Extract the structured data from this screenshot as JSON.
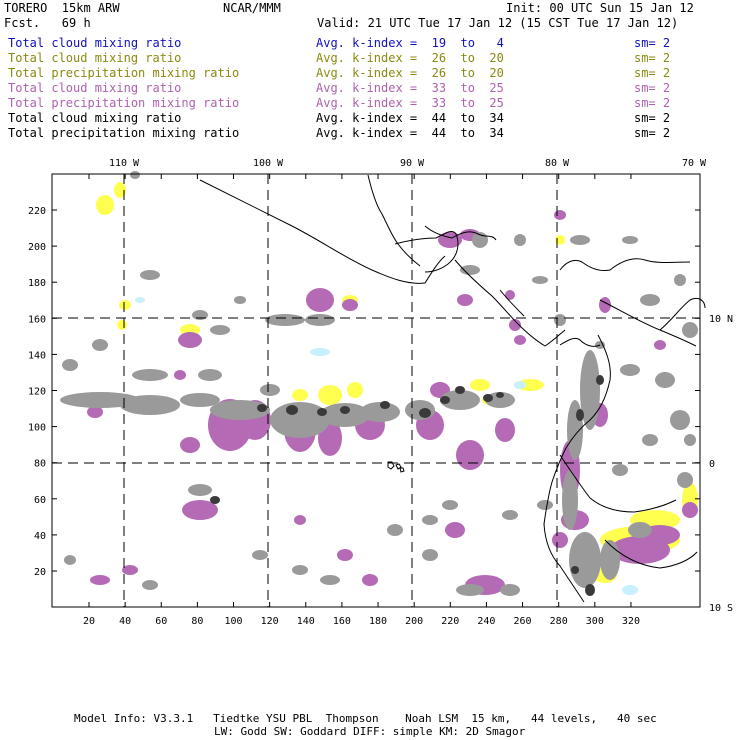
{
  "header": {
    "model": "TORERO  15km ARW",
    "org": "NCAR/MMM",
    "init": "Init: 00 UTC Sun 15 Jan 12",
    "fcst": "Fcst.   69 h",
    "valid": "Valid: 21 UTC Tue 17 Jan 12 (15 CST Tue 17 Jan 12)"
  },
  "legend": [
    {
      "field": "Total cloud mixing ratio",
      "kindex": "Avg. k-index =  19  to   4",
      "sm": "sm= 2",
      "color": "#1010c0"
    },
    {
      "field": "Total cloud mixing ratio",
      "kindex": "Avg. k-index =  26  to  20",
      "sm": "sm= 2",
      "color": "#8a8a10"
    },
    {
      "field": "Total precipitation mixing ratio",
      "kindex": "Avg. k-index =  26  to  20",
      "sm": "sm= 2",
      "color": "#8a8a10"
    },
    {
      "field": "Total cloud mixing ratio",
      "kindex": "Avg. k-index =  33  to  25",
      "sm": "sm= 2",
      "color": "#b060b0"
    },
    {
      "field": "Total precipitation mixing ratio",
      "kindex": "Avg. k-index =  33  to  25",
      "sm": "sm= 2",
      "color": "#b060b0"
    },
    {
      "field": "Total cloud mixing ratio",
      "kindex": "Avg. k-index =  44  to  34",
      "sm": "sm= 2",
      "color": "#000000"
    },
    {
      "field": "Total precipitation mixing ratio",
      "kindex": "Avg. k-index =  44  to  34",
      "sm": "sm= 2",
      "color": "#000000"
    }
  ],
  "map": {
    "lon_labels": [
      "110 W",
      "100 W",
      "90 W",
      "80 W",
      "70 W"
    ],
    "lat_labels": [
      "10 N",
      "0",
      "10 S"
    ],
    "x_ticks": [
      "20",
      "40",
      "60",
      "80",
      "100",
      "120",
      "140",
      "160",
      "180",
      "200",
      "220",
      "240",
      "260",
      "280",
      "300",
      "320"
    ],
    "y_ticks": [
      "20",
      "40",
      "60",
      "80",
      "100",
      "120",
      "140",
      "160",
      "180",
      "200",
      "220"
    ],
    "colors": {
      "gray": "#9a9a9a",
      "purple": "#b46ab4",
      "yellow": "#ffff50",
      "cyan": "#c8f0ff",
      "dark": "#3a3a3a"
    }
  },
  "footer": {
    "line1": "Model Info: V3.3.1   Tiedtke YSU PBL  Thompson    Noah LSM  15 km,   44 levels,   40 sec",
    "line2": "LW: Godd SW: Goddard DIFF: simple KM: 2D Smagor"
  }
}
